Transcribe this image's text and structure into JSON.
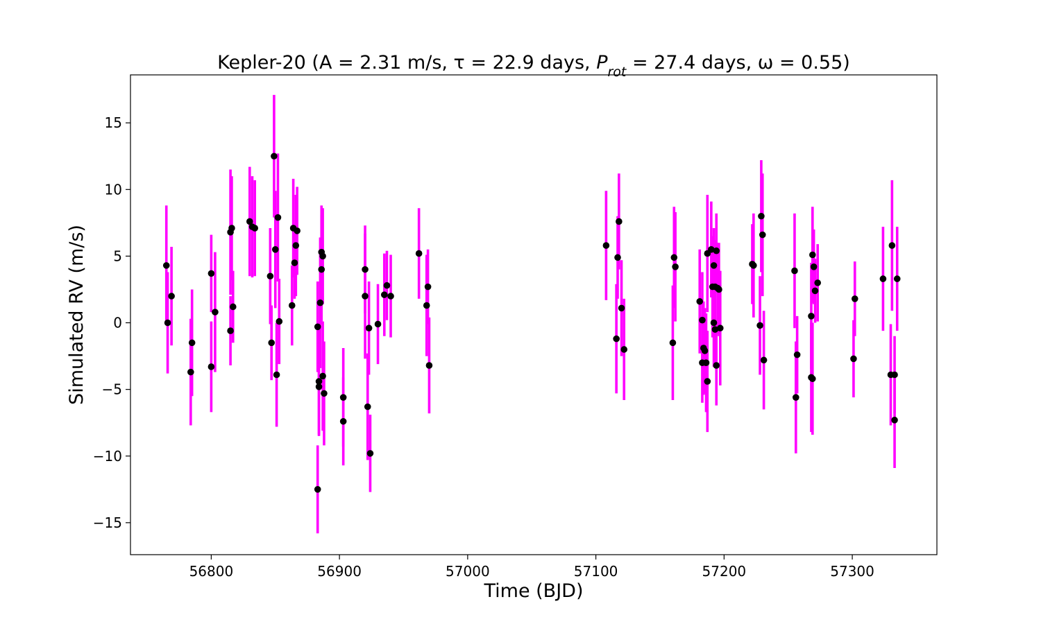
{
  "chart_data": {
    "type": "scatter",
    "title": "Kepler-20 (A = 2.31 m/s, τ = 22.9 days, P_rot = 27.4 days, ω = 0.55)",
    "title_parts": {
      "prefix": "Kepler-20 (A = 2.31 m/s, τ = 22.9 days, ",
      "p_symbol": "P",
      "p_subscript": "rot",
      "suffix": " = 27.4 days, ω = 0.55)"
    },
    "xlabel": "Time (BJD)",
    "ylabel": "Simulated RV (m/s)",
    "xlim": [
      56737,
      57366
    ],
    "ylim": [
      -17.4,
      18.6
    ],
    "xticks": [
      56800,
      56900,
      57000,
      57100,
      57200,
      57300
    ],
    "yticks": [
      -15,
      -10,
      -5,
      0,
      5,
      10,
      15
    ],
    "grid": false,
    "colors": {
      "errorbar": "#ff00ff",
      "marker": "#000000"
    },
    "series": [
      {
        "points": [
          {
            "x": 56765,
            "y": 4.3,
            "err": 4.5
          },
          {
            "x": 56766,
            "y": 0.0,
            "err": 3.8
          },
          {
            "x": 56769,
            "y": 2.0,
            "err": 3.7
          },
          {
            "x": 56784,
            "y": -3.7,
            "err": 4.0
          },
          {
            "x": 56785,
            "y": -1.5,
            "err": 4.0
          },
          {
            "x": 56800,
            "y": -3.3,
            "err": 3.4
          },
          {
            "x": 56800,
            "y": 3.7,
            "err": 2.9
          },
          {
            "x": 56803,
            "y": 0.8,
            "err": 4.5
          },
          {
            "x": 56815,
            "y": -0.6,
            "err": 2.6
          },
          {
            "x": 56815,
            "y": 6.8,
            "err": 4.7
          },
          {
            "x": 56816,
            "y": 7.1,
            "err": 3.9
          },
          {
            "x": 56817,
            "y": 1.2,
            "err": 2.7
          },
          {
            "x": 56830,
            "y": 7.6,
            "err": 4.1
          },
          {
            "x": 56832,
            "y": 7.2,
            "err": 3.8
          },
          {
            "x": 56834,
            "y": 7.1,
            "err": 3.6
          },
          {
            "x": 56846,
            "y": 3.5,
            "err": 3.6
          },
          {
            "x": 56847,
            "y": -1.5,
            "err": 2.8
          },
          {
            "x": 56849,
            "y": 12.5,
            "err": 4.6
          },
          {
            "x": 56850,
            "y": 5.5,
            "err": 4.4
          },
          {
            "x": 56851,
            "y": -3.9,
            "err": 3.9
          },
          {
            "x": 56852,
            "y": 7.9,
            "err": 4.8
          },
          {
            "x": 56853,
            "y": 0.1,
            "err": 3.2
          },
          {
            "x": 56863,
            "y": 1.3,
            "err": 3.0
          },
          {
            "x": 56864,
            "y": 7.1,
            "err": 3.7
          },
          {
            "x": 56865,
            "y": 4.5,
            "err": 2.7
          },
          {
            "x": 56866,
            "y": 5.8,
            "err": 3.8
          },
          {
            "x": 56867,
            "y": 6.9,
            "err": 3.3
          },
          {
            "x": 56883,
            "y": -12.5,
            "err": 3.3
          },
          {
            "x": 56883,
            "y": -0.3,
            "err": 3.4
          },
          {
            "x": 56884,
            "y": -4.4,
            "err": 4.1
          },
          {
            "x": 56884,
            "y": -4.8,
            "err": 3.6
          },
          {
            "x": 56885,
            "y": 1.5,
            "err": 4.9
          },
          {
            "x": 56886,
            "y": 5.3,
            "err": 3.5
          },
          {
            "x": 56886,
            "y": 4.0,
            "err": 4.1
          },
          {
            "x": 56887,
            "y": 5.0,
            "err": 3.6
          },
          {
            "x": 56887,
            "y": -4.0,
            "err": 4.1
          },
          {
            "x": 56888,
            "y": -5.3,
            "err": 3.9
          },
          {
            "x": 56903,
            "y": -5.6,
            "err": 3.7
          },
          {
            "x": 56903,
            "y": -7.4,
            "err": 3.3
          },
          {
            "x": 56920,
            "y": 4.0,
            "err": 3.3
          },
          {
            "x": 56920,
            "y": 2.0,
            "err": 4.7
          },
          {
            "x": 56922,
            "y": -6.3,
            "err": 4.0
          },
          {
            "x": 56923,
            "y": -0.4,
            "err": 3.5
          },
          {
            "x": 56924,
            "y": -9.8,
            "err": 2.9
          },
          {
            "x": 56930,
            "y": -0.1,
            "err": 3.0
          },
          {
            "x": 56935,
            "y": 2.1,
            "err": 3.1
          },
          {
            "x": 56937,
            "y": 2.8,
            "err": 2.6
          },
          {
            "x": 56940,
            "y": 2.0,
            "err": 3.1
          },
          {
            "x": 56962,
            "y": 5.2,
            "err": 3.4
          },
          {
            "x": 56968,
            "y": 1.3,
            "err": 3.8
          },
          {
            "x": 56969,
            "y": 2.7,
            "err": 2.8
          },
          {
            "x": 56970,
            "y": -3.2,
            "err": 3.6
          },
          {
            "x": 57108,
            "y": 5.8,
            "err": 4.1
          },
          {
            "x": 57116,
            "y": -1.2,
            "err": 4.1
          },
          {
            "x": 57117,
            "y": 4.9,
            "err": 3.1
          },
          {
            "x": 57118,
            "y": 7.6,
            "err": 3.6
          },
          {
            "x": 57120,
            "y": 1.1,
            "err": 3.6
          },
          {
            "x": 57122,
            "y": -2.0,
            "err": 3.8
          },
          {
            "x": 57160,
            "y": -1.5,
            "err": 4.3
          },
          {
            "x": 57161,
            "y": 4.9,
            "err": 3.8
          },
          {
            "x": 57162,
            "y": 4.2,
            "err": 4.1
          },
          {
            "x": 57181,
            "y": 1.6,
            "err": 3.9
          },
          {
            "x": 57183,
            "y": -3.0,
            "err": 3.0
          },
          {
            "x": 57183,
            "y": 0.2,
            "err": 3.6
          },
          {
            "x": 57184,
            "y": -1.9,
            "err": 3.5
          },
          {
            "x": 57185,
            "y": -2.1,
            "err": 3.2
          },
          {
            "x": 57186,
            "y": -3.0,
            "err": 3.7
          },
          {
            "x": 57187,
            "y": 5.2,
            "err": 4.4
          },
          {
            "x": 57187,
            "y": -4.4,
            "err": 3.8
          },
          {
            "x": 57190,
            "y": 5.5,
            "err": 3.6
          },
          {
            "x": 57191,
            "y": 2.7,
            "err": 3.8
          },
          {
            "x": 57192,
            "y": 4.3,
            "err": 2.8
          },
          {
            "x": 57192,
            "y": 0.0,
            "err": 3.3
          },
          {
            "x": 57193,
            "y": -0.5,
            "err": 2.9
          },
          {
            "x": 57193,
            "y": 2.7,
            "err": 3.5
          },
          {
            "x": 57194,
            "y": 5.4,
            "err": 2.8
          },
          {
            "x": 57194,
            "y": -3.2,
            "err": 3.0
          },
          {
            "x": 57195,
            "y": 2.6,
            "err": 3.4
          },
          {
            "x": 57196,
            "y": 2.5,
            "err": 3.5
          },
          {
            "x": 57197,
            "y": -0.4,
            "err": 4.3
          },
          {
            "x": 57222,
            "y": 4.4,
            "err": 3.0
          },
          {
            "x": 57223,
            "y": 4.3,
            "err": 3.9
          },
          {
            "x": 57228,
            "y": -0.2,
            "err": 3.7
          },
          {
            "x": 57229,
            "y": 8.0,
            "err": 4.2
          },
          {
            "x": 57230,
            "y": 6.6,
            "err": 4.6
          },
          {
            "x": 57231,
            "y": -2.8,
            "err": 3.7
          },
          {
            "x": 57255,
            "y": 3.9,
            "err": 4.3
          },
          {
            "x": 57256,
            "y": -5.6,
            "err": 4.2
          },
          {
            "x": 57257,
            "y": -2.4,
            "err": 2.9
          },
          {
            "x": 57268,
            "y": 0.5,
            "err": 4.0
          },
          {
            "x": 57268,
            "y": -4.1,
            "err": 4.1
          },
          {
            "x": 57269,
            "y": 5.1,
            "err": 3.6
          },
          {
            "x": 57269,
            "y": -4.2,
            "err": 4.2
          },
          {
            "x": 57270,
            "y": 4.2,
            "err": 2.8
          },
          {
            "x": 57271,
            "y": 2.4,
            "err": 2.4
          },
          {
            "x": 57273,
            "y": 3.0,
            "err": 2.9
          },
          {
            "x": 57301,
            "y": -2.7,
            "err": 2.9
          },
          {
            "x": 57302,
            "y": 1.8,
            "err": 2.8
          },
          {
            "x": 57324,
            "y": 3.3,
            "err": 3.9
          },
          {
            "x": 57330,
            "y": -3.9,
            "err": 3.8
          },
          {
            "x": 57331,
            "y": 5.8,
            "err": 4.9
          },
          {
            "x": 57333,
            "y": -7.3,
            "err": 3.6
          },
          {
            "x": 57333,
            "y": -3.9,
            "err": 2.9
          },
          {
            "x": 57335,
            "y": 3.3,
            "err": 3.9
          }
        ]
      }
    ]
  }
}
